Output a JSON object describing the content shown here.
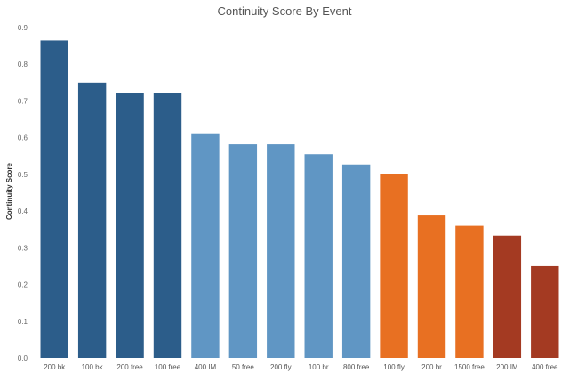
{
  "chart_data": {
    "type": "bar",
    "title": "Continuity Score By Event",
    "xlabel": "",
    "ylabel": "Continuity Score",
    "ylim": [
      0,
      0.9
    ],
    "yticks": [
      0.0,
      0.1,
      0.2,
      0.3,
      0.4,
      0.5,
      0.6,
      0.7,
      0.8,
      0.9
    ],
    "ytick_labels": [
      "0.0",
      "0.1",
      "0.2",
      "0.3",
      "0.4",
      "0.5",
      "0.6",
      "0.7",
      "0.8",
      "0.9"
    ],
    "grid": false,
    "categories": [
      "200 bk",
      "100 bk",
      "200 free",
      "100 free",
      "400 IM",
      "50 free",
      "200 fly",
      "100 br",
      "800 free",
      "100 fly",
      "200 br",
      "1500 free",
      "200 IM",
      "400 free"
    ],
    "values": [
      0.865,
      0.75,
      0.722,
      0.722,
      0.612,
      0.582,
      0.582,
      0.555,
      0.527,
      0.5,
      0.388,
      0.36,
      0.333,
      0.25
    ],
    "colors": [
      "#2c5d8a",
      "#2c5d8a",
      "#2c5d8a",
      "#2c5d8a",
      "#6096c4",
      "#6096c4",
      "#6096c4",
      "#6096c4",
      "#6096c4",
      "#e87022",
      "#e87022",
      "#e87022",
      "#a43a22",
      "#a43a22"
    ]
  }
}
